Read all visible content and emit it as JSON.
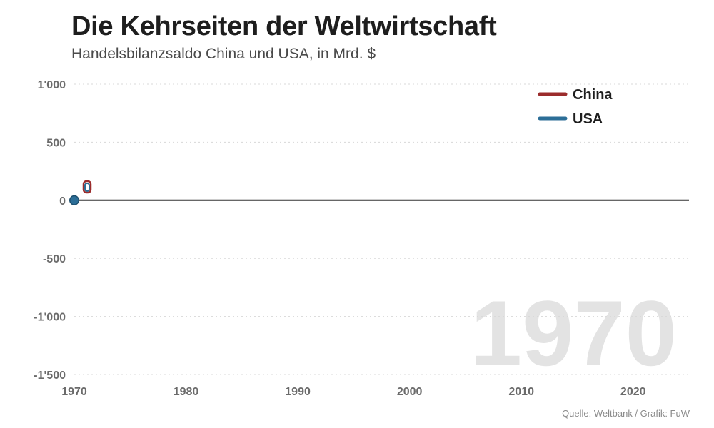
{
  "header": {
    "title": "Die Kehrseiten der Weltwirtschaft",
    "subtitle": "Handelsbilanzsaldo China und USA, in Mrd. $"
  },
  "footer": {
    "source": "Quelle: Weltbank / Grafik: FuW"
  },
  "colors": {
    "china": "#9b2c2c",
    "usa": "#2c6e97",
    "zero_line": "#333333",
    "grid": "#d8d8d8"
  },
  "chart_data": {
    "type": "line",
    "title": "Die Kehrseiten der Weltwirtschaft",
    "subtitle": "Handelsbilanzsaldo China und USA, in Mrd. $",
    "xlim": [
      1970,
      2025
    ],
    "ylim": [
      -1500,
      1000
    ],
    "x_ticks": [
      1970,
      1980,
      1990,
      2000,
      2010,
      2020
    ],
    "x_tick_labels": [
      "1970",
      "1980",
      "1990",
      "2000",
      "2010",
      "2020"
    ],
    "y_ticks": [
      1000,
      500,
      0,
      -500,
      -1000,
      -1500
    ],
    "y_tick_labels": [
      "1'000",
      "500",
      "0",
      "-500",
      "-1'000",
      "-1'500"
    ],
    "grid": true,
    "legend_position": "top-right",
    "current_year": "1970",
    "series": [
      {
        "name": "China",
        "color": "#9b2c2c",
        "x": [
          1970
        ],
        "y": [
          0
        ]
      },
      {
        "name": "USA",
        "color": "#2c6e97",
        "x": [
          1970
        ],
        "y": [
          0
        ]
      }
    ]
  }
}
